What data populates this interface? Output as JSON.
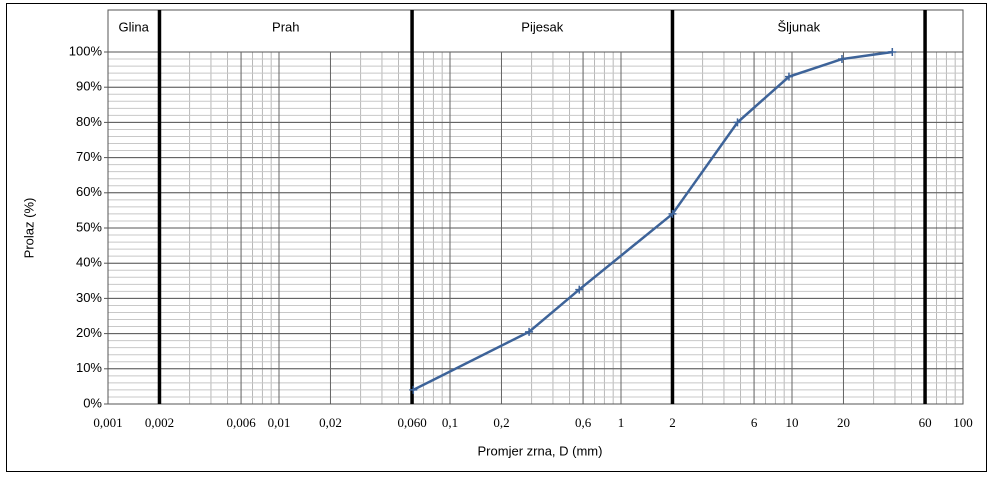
{
  "chart_data": {
    "type": "line",
    "xlabel": "Promjer zrna, D (mm)",
    "ylabel": "Prolaz  (%)",
    "log_x": true,
    "grid": true,
    "xlim": [
      0.001,
      100
    ],
    "ylim": [
      0,
      100
    ],
    "xticks": [
      {
        "value": 0.001,
        "label": "0,001"
      },
      {
        "value": 0.002,
        "label": "0,002"
      },
      {
        "value": 0.006,
        "label": "0,006"
      },
      {
        "value": 0.01,
        "label": "0,01"
      },
      {
        "value": 0.02,
        "label": "0,02"
      },
      {
        "value": 0.06,
        "label": "0,060"
      },
      {
        "value": 0.1,
        "label": "0,1"
      },
      {
        "value": 0.2,
        "label": "0,2"
      },
      {
        "value": 0.6,
        "label": "0,6"
      },
      1,
      2,
      6,
      10,
      20,
      60,
      100
    ],
    "yticks": [
      {
        "value": 0,
        "label": "0%"
      },
      {
        "value": 10,
        "label": "10%"
      },
      {
        "value": 20,
        "label": "20%"
      },
      {
        "value": 30,
        "label": "30%"
      },
      {
        "value": 40,
        "label": "40%"
      },
      {
        "value": 50,
        "label": "50%"
      },
      {
        "value": 60,
        "label": "60%"
      },
      {
        "value": 70,
        "label": "70%"
      },
      {
        "value": 80,
        "label": "80%"
      },
      {
        "value": 90,
        "label": "90%"
      },
      {
        "value": 100,
        "label": "100%"
      }
    ],
    "zones": [
      "Glina",
      "Prah",
      "Pijesak",
      "Šljunak"
    ],
    "zone_boundaries": [
      0.002,
      0.06,
      2,
      60
    ],
    "series": [
      {
        "color": "#3d6399",
        "x": [
          0.061,
          0.29,
          0.57,
          2,
          4.8,
          9.6,
          19.6,
          38.6
        ],
        "values": [
          4,
          20.5,
          32.5,
          54,
          80,
          93,
          98,
          100
        ]
      }
    ]
  }
}
